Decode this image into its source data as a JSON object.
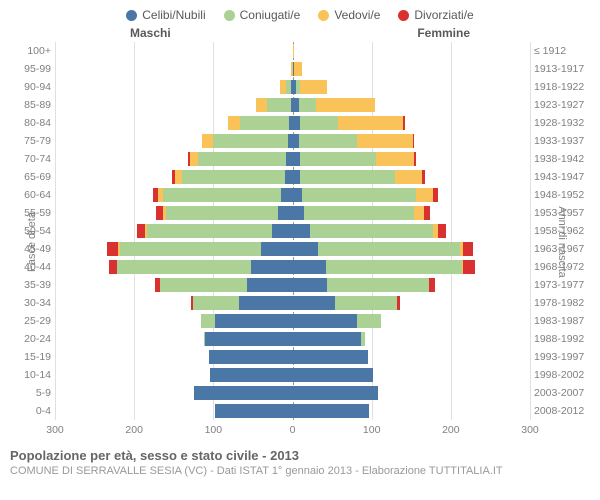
{
  "legend": [
    {
      "label": "Celibi/Nubili",
      "color": "#4b77a6"
    },
    {
      "label": "Coniugati/e",
      "color": "#abd194"
    },
    {
      "label": "Vedovi/e",
      "color": "#f9c35a"
    },
    {
      "label": "Divorziati/e",
      "color": "#d93130"
    }
  ],
  "genders": {
    "m": "Maschi",
    "f": "Femmine"
  },
  "axes": {
    "left_title": "Fasce di età",
    "right_title": "Anni di nascita",
    "xmax": 300,
    "xticks": [
      300,
      200,
      100,
      0,
      100,
      200,
      300
    ],
    "grid_color": "#e0e0e0",
    "center_color": "#999999"
  },
  "rows": [
    {
      "age": "0-4",
      "year": "2008-2012",
      "m": [
        98,
        0,
        0,
        0
      ],
      "f": [
        96,
        0,
        0,
        0
      ]
    },
    {
      "age": "5-9",
      "year": "2003-2007",
      "m": [
        124,
        0,
        0,
        0
      ],
      "f": [
        108,
        0,
        0,
        0
      ]
    },
    {
      "age": "10-14",
      "year": "1998-2002",
      "m": [
        104,
        0,
        0,
        0
      ],
      "f": [
        102,
        0,
        0,
        0
      ]
    },
    {
      "age": "15-19",
      "year": "1993-1997",
      "m": [
        105,
        0,
        0,
        0
      ],
      "f": [
        95,
        0,
        0,
        0
      ]
    },
    {
      "age": "20-24",
      "year": "1988-1992",
      "m": [
        110,
        2,
        0,
        0
      ],
      "f": [
        86,
        6,
        0,
        0
      ]
    },
    {
      "age": "25-29",
      "year": "1983-1987",
      "m": [
        98,
        18,
        0,
        0
      ],
      "f": [
        82,
        30,
        0,
        0
      ]
    },
    {
      "age": "30-34",
      "year": "1978-1982",
      "m": [
        68,
        58,
        0,
        2
      ],
      "f": [
        54,
        78,
        0,
        4
      ]
    },
    {
      "age": "35-39",
      "year": "1973-1977",
      "m": [
        58,
        110,
        0,
        6
      ],
      "f": [
        44,
        128,
        0,
        8
      ]
    },
    {
      "age": "40-44",
      "year": "1968-1972",
      "m": [
        52,
        170,
        0,
        10
      ],
      "f": [
        42,
        172,
        2,
        14
      ]
    },
    {
      "age": "45-49",
      "year": "1963-1967",
      "m": [
        40,
        178,
        2,
        14
      ],
      "f": [
        32,
        180,
        4,
        12
      ]
    },
    {
      "age": "50-54",
      "year": "1958-1962",
      "m": [
        26,
        158,
        2,
        10
      ],
      "f": [
        22,
        156,
        6,
        10
      ]
    },
    {
      "age": "55-59",
      "year": "1953-1957",
      "m": [
        18,
        142,
        4,
        8
      ],
      "f": [
        14,
        140,
        12,
        8
      ]
    },
    {
      "age": "60-64",
      "year": "1948-1952",
      "m": [
        14,
        150,
        6,
        6
      ],
      "f": [
        12,
        144,
        22,
        6
      ]
    },
    {
      "age": "65-69",
      "year": "1943-1947",
      "m": [
        10,
        130,
        8,
        4
      ],
      "f": [
        10,
        120,
        34,
        4
      ]
    },
    {
      "age": "70-74",
      "year": "1938-1942",
      "m": [
        8,
        112,
        10,
        2
      ],
      "f": [
        10,
        96,
        48,
        2
      ]
    },
    {
      "age": "75-79",
      "year": "1933-1937",
      "m": [
        6,
        94,
        14,
        0
      ],
      "f": [
        8,
        74,
        70,
        2
      ]
    },
    {
      "age": "80-84",
      "year": "1928-1932",
      "m": [
        4,
        62,
        16,
        0
      ],
      "f": [
        10,
        48,
        82,
        2
      ]
    },
    {
      "age": "85-89",
      "year": "1923-1927",
      "m": [
        2,
        30,
        14,
        0
      ],
      "f": [
        8,
        22,
        74,
        0
      ]
    },
    {
      "age": "90-94",
      "year": "1918-1922",
      "m": [
        2,
        6,
        8,
        0
      ],
      "f": [
        4,
        6,
        34,
        0
      ]
    },
    {
      "age": "95-99",
      "year": "1913-1917",
      "m": [
        0,
        0,
        2,
        0
      ],
      "f": [
        2,
        0,
        10,
        0
      ]
    },
    {
      "age": "100+",
      "year": "≤ 1912",
      "m": [
        0,
        0,
        0,
        0
      ],
      "f": [
        0,
        0,
        2,
        0
      ]
    }
  ],
  "titles": {
    "main": "Popolazione per età, sesso e stato civile - 2013",
    "sub": "COMUNE DI SERRAVALLE SESIA (VC) - Dati ISTAT 1° gennaio 2013 - Elaborazione TUTTITALIA.IT"
  }
}
